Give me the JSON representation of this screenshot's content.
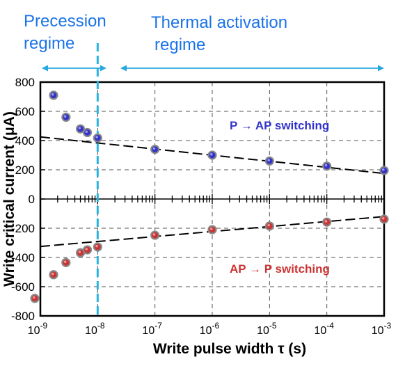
{
  "chart_data": {
    "type": "scatter",
    "x_scale": "log",
    "xlim": [
      1e-09,
      0.001
    ],
    "ylim": [
      -800,
      800
    ],
    "grid": true,
    "xlabel": "Write pulse width τ (s)",
    "ylabel": "Write critical current (μA)",
    "x_ticks": [
      {
        "value": 1e-09,
        "base": "10",
        "exp": "-9"
      },
      {
        "value": 1e-08,
        "base": "10",
        "exp": "-8"
      },
      {
        "value": 1e-07,
        "base": "10",
        "exp": "-7"
      },
      {
        "value": 1e-06,
        "base": "10",
        "exp": "-6"
      },
      {
        "value": 1e-05,
        "base": "10",
        "exp": "-5"
      },
      {
        "value": 0.0001,
        "base": "10",
        "exp": "-4"
      },
      {
        "value": 0.001,
        "base": "10",
        "exp": "-3"
      }
    ],
    "y_ticks": [
      800,
      600,
      400,
      200,
      0,
      -200,
      -400,
      -600,
      -800
    ],
    "series": [
      {
        "name": "P → AP switching",
        "color": "#3333cc",
        "x": [
          1.7e-09,
          2.8e-09,
          5e-09,
          6.6e-09,
          1e-08,
          1e-07,
          1e-06,
          1e-05,
          0.0001,
          0.001
        ],
        "y": [
          710,
          560,
          480,
          455,
          418,
          340,
          300,
          260,
          225,
          195
        ]
      },
      {
        "name": "AP → P switching",
        "color": "#cc3333",
        "x": [
          8e-10,
          1.7e-09,
          2.8e-09,
          5e-09,
          6.6e-09,
          1e-08,
          1e-07,
          1e-06,
          1e-05,
          0.0001,
          0.001
        ],
        "y": [
          -680,
          -518,
          -435,
          -368,
          -348,
          -328,
          -248,
          -210,
          -185,
          -158,
          -138
        ]
      }
    ],
    "fit_lines": [
      {
        "name": "P → AP fit",
        "x": [
          1e-09,
          0.001
        ],
        "y": [
          425,
          175
        ]
      },
      {
        "name": "AP → P fit",
        "x": [
          1e-09,
          0.001
        ],
        "y": [
          -325,
          -120
        ]
      }
    ],
    "regime_boundary_x": 1e-08,
    "annotations": [
      {
        "id": "precession",
        "lines": [
          "Precession",
          "regime"
        ]
      },
      {
        "id": "thermal",
        "lines": [
          "Thermal activation",
          "regime"
        ]
      }
    ],
    "colors": {
      "annotation": "#1a73e8",
      "boundary": "#26b5e0",
      "arrow": "#29a8e0",
      "fit": "#000000"
    }
  }
}
